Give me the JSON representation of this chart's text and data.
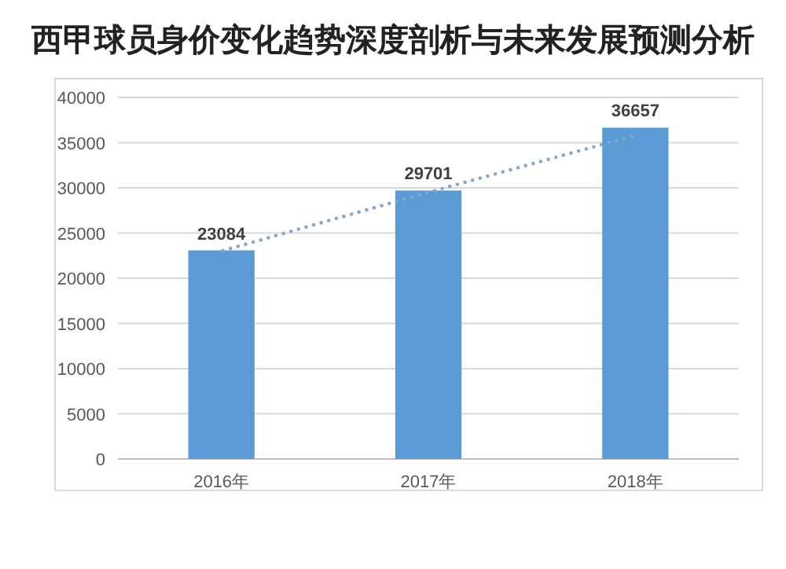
{
  "chart_data": {
    "type": "bar",
    "title": "西甲球员身价变化趋势深度剖析与未来发展预测分析",
    "categories": [
      "2016年",
      "2017年",
      "2018年"
    ],
    "series": [
      {
        "color": "#5b9bd5",
        "values": [
          23084,
          29701,
          36657
        ],
        "data_labels": true
      },
      {
        "type": "line",
        "color": "#7fa7cf",
        "line_style": "dotted",
        "marker": "none",
        "values": [
          23000,
          29500,
          35800
        ]
      }
    ],
    "ylim": [
      0,
      40000
    ],
    "yticks": [
      0,
      5000,
      10000,
      15000,
      20000,
      25000,
      30000,
      35000,
      40000
    ],
    "grid": "y"
  }
}
